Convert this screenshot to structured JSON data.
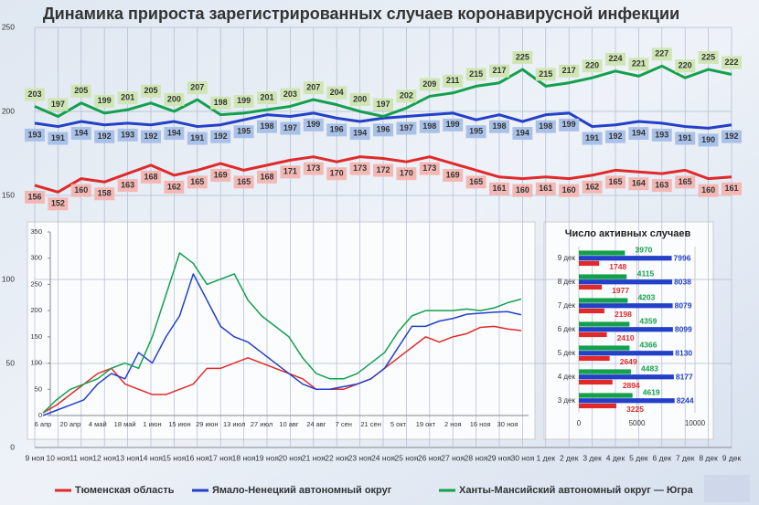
{
  "chart_data": [
    {
      "type": "line",
      "title": "Динамика прироста зарегистрированных случаев коронавирусной инфекции",
      "categories": [
        "9 ноя",
        "10 ноя",
        "11 ноя",
        "12 ноя",
        "13 ноя",
        "14 ноя",
        "15 ноя",
        "16 ноя",
        "17 ноя",
        "18 ноя",
        "19 ноя",
        "20 ноя",
        "21 ноя",
        "22 ноя",
        "23 ноя",
        "24 ноя",
        "25 ноя",
        "26 ноя",
        "27 ноя",
        "28 ноя",
        "29 ноя",
        "30 ноя",
        "1 дек",
        "2 дек",
        "3 дек",
        "4 дек",
        "5 дек",
        "6 дек",
        "7 дек",
        "8 дек",
        "9 дек"
      ],
      "ylim": [
        0,
        250
      ],
      "yticks": [
        0,
        50,
        100,
        150,
        200,
        250
      ],
      "grid": true,
      "legend": "bottom",
      "series": [
        {
          "name": "Тюменская область",
          "color": "#e02a2a",
          "label_bg": "#f4b8b4",
          "values": [
            156,
            152,
            160,
            158,
            163,
            168,
            162,
            165,
            169,
            165,
            168,
            171,
            173,
            170,
            173,
            172,
            170,
            173,
            169,
            165,
            161,
            160,
            161,
            160,
            162,
            165,
            164,
            163,
            165,
            160,
            161
          ]
        },
        {
          "name": "Ямало-Ненецкий автономный округ",
          "color": "#2340c8",
          "label_bg": "#a9c1e8",
          "values": [
            193,
            191,
            194,
            192,
            193,
            192,
            194,
            191,
            192,
            195,
            198,
            197,
            199,
            196,
            194,
            196,
            197,
            198,
            199,
            195,
            198,
            194,
            198,
            199,
            191,
            192,
            194,
            193,
            191,
            190,
            192
          ]
        },
        {
          "name": "Ханты-Мансийский автономный округ — Югра",
          "color": "#13a04c",
          "label_bg": "#cfe6b4",
          "values": [
            203,
            197,
            205,
            199,
            201,
            205,
            200,
            207,
            198,
            199,
            201,
            203,
            207,
            204,
            200,
            197,
            202,
            209,
            211,
            215,
            217,
            225,
            215,
            217,
            220,
            224,
            221,
            227,
            220,
            225,
            222
          ]
        }
      ]
    },
    {
      "type": "line",
      "categories": [
        "6 апр",
        null,
        "20 апр",
        null,
        "4 май",
        null,
        "18 май",
        null,
        "1 июн",
        null,
        "15 июн",
        null,
        "29 июн",
        null,
        "13 июл",
        null,
        "27 июл",
        null,
        "10 авг",
        null,
        "24 авг",
        null,
        "7 сен",
        null,
        "21 сен",
        null,
        "5 окт",
        null,
        "19 окт",
        null,
        "2 ноя",
        null,
        "16 ноя",
        null,
        "30 ноя",
        null
      ],
      "ylim": [
        0,
        350
      ],
      "yticks": [
        0,
        50,
        100,
        150,
        200,
        250,
        300,
        350
      ],
      "grid": false,
      "series": [
        {
          "color": "#e02a2a",
          "values": [
            5,
            20,
            40,
            60,
            80,
            90,
            60,
            50,
            40,
            40,
            50,
            60,
            90,
            90,
            100,
            110,
            100,
            90,
            80,
            70,
            50,
            50,
            50,
            60,
            70,
            90,
            110,
            130,
            150,
            140,
            150,
            156,
            168,
            170,
            165,
            162
          ]
        },
        {
          "color": "#2340c8",
          "values": [
            0,
            10,
            20,
            30,
            60,
            80,
            70,
            120,
            100,
            150,
            190,
            270,
            220,
            170,
            150,
            140,
            120,
            100,
            80,
            60,
            50,
            50,
            55,
            60,
            70,
            90,
            130,
            170,
            170,
            180,
            185,
            193,
            195,
            197,
            198,
            192
          ]
        },
        {
          "color": "#13a04c",
          "values": [
            5,
            30,
            50,
            60,
            70,
            90,
            100,
            90,
            150,
            230,
            310,
            290,
            250,
            260,
            270,
            220,
            190,
            170,
            150,
            110,
            80,
            70,
            70,
            80,
            100,
            120,
            160,
            190,
            200,
            200,
            200,
            203,
            200,
            205,
            215,
            222
          ]
        }
      ]
    },
    {
      "type": "bar",
      "orientation": "horizontal",
      "title": "Число активных случаев",
      "categories": [
        "9 дек",
        "8 дек",
        "7 дек",
        "6 дек",
        "5 дек",
        "4 дек",
        "3 дек"
      ],
      "xlim": [
        0,
        10000
      ],
      "xticks": [
        0,
        5000,
        10000
      ],
      "series": [
        {
          "color": "#13a04c",
          "values": [
            3970,
            4115,
            4203,
            4359,
            4366,
            4483,
            4619
          ]
        },
        {
          "color": "#2340c8",
          "values": [
            7996,
            8038,
            8079,
            8099,
            8130,
            8177,
            8244
          ]
        },
        {
          "color": "#e02a2a",
          "values": [
            1748,
            1977,
            2198,
            2410,
            2649,
            2894,
            3225
          ]
        }
      ]
    }
  ]
}
